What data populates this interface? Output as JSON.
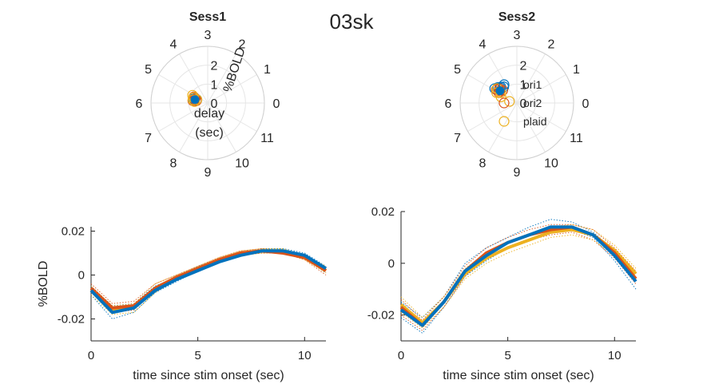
{
  "figure_title": "03sk",
  "colors": {
    "ori1": "#0072BD",
    "ori2": "#D95319",
    "plaid": "#EDB120",
    "mean_marker": "#0072BD",
    "axis": "#262626",
    "polar_grid": "#E6E6E6"
  },
  "chart_data": [
    {
      "type": "polar-scatter",
      "title": "Sess1",
      "theta_labels": [
        "0",
        "1",
        "2",
        "3",
        "4",
        "5",
        "6",
        "7",
        "8",
        "9",
        "10",
        "11"
      ],
      "r_ticks": [
        "0",
        "1",
        "2"
      ],
      "r_label": "%BOLD",
      "theta_label": "delay (sec)",
      "theta_label_lines": [
        "delay",
        "(sec)"
      ],
      "r_max": 3,
      "points": [
        {
          "series": "ori1",
          "delay": 5.5,
          "r": 0.6
        },
        {
          "series": "ori1",
          "delay": 5.6,
          "r": 0.7
        },
        {
          "series": "ori1",
          "delay": 5.5,
          "r": 0.8
        },
        {
          "series": "ori1",
          "delay": 5.3,
          "r": 0.7
        },
        {
          "series": "ori1",
          "delay": 5.4,
          "r": 0.6
        },
        {
          "series": "ori2",
          "delay": 5.4,
          "r": 0.7
        },
        {
          "series": "ori2",
          "delay": 5.6,
          "r": 0.6
        },
        {
          "series": "ori2",
          "delay": 5.2,
          "r": 0.8
        },
        {
          "series": "ori2",
          "delay": 5.7,
          "r": 0.8
        },
        {
          "series": "ori2",
          "delay": 5.5,
          "r": 0.7
        },
        {
          "series": "plaid",
          "delay": 5.3,
          "r": 0.8
        },
        {
          "series": "plaid",
          "delay": 5.6,
          "r": 0.8
        },
        {
          "series": "plaid",
          "delay": 5.1,
          "r": 0.9
        },
        {
          "series": "plaid",
          "delay": 5.8,
          "r": 0.7
        },
        {
          "series": "plaid",
          "delay": 5.4,
          "r": 0.6
        }
      ],
      "mean": {
        "delay": 5.5,
        "r": 0.7
      }
    },
    {
      "type": "polar-scatter",
      "title": "Sess2",
      "theta_labels": [
        "0",
        "1",
        "2",
        "3",
        "4",
        "5",
        "6",
        "7",
        "8",
        "9",
        "10",
        "11"
      ],
      "r_ticks": [
        "0",
        "1",
        "2"
      ],
      "r_max": 3,
      "legend": {
        "entries": [
          "ori1",
          "ori2",
          "plaid"
        ],
        "placement": "inside"
      },
      "points": [
        {
          "series": "ori1",
          "delay": 4.5,
          "r": 1.2
        },
        {
          "series": "ori1",
          "delay": 4.7,
          "r": 1.3
        },
        {
          "series": "ori1",
          "delay": 4.3,
          "r": 1.1
        },
        {
          "series": "ori1",
          "delay": 4.9,
          "r": 1.4
        },
        {
          "series": "ori1",
          "delay": 4.6,
          "r": 1.2
        },
        {
          "series": "ori2",
          "delay": 4.8,
          "r": 1.1
        },
        {
          "series": "ori2",
          "delay": 4.9,
          "r": 1.3
        },
        {
          "series": "ori2",
          "delay": 4.6,
          "r": 1.0
        },
        {
          "series": "ori2",
          "delay": 4.7,
          "r": 1.2
        },
        {
          "series": "ori2",
          "delay": 5.0,
          "r": 1.1
        },
        {
          "series": "plaid",
          "delay": 4.9,
          "r": 1.0
        },
        {
          "series": "plaid",
          "delay": 5.1,
          "r": 1.2
        },
        {
          "series": "plaid",
          "delay": 5.3,
          "r": 0.9
        },
        {
          "series": "plaid",
          "delay": 5.6,
          "r": 0.4
        },
        {
          "series": "plaid",
          "delay": 4.8,
          "r": 1.3
        }
      ],
      "mean": {
        "delay": 4.8,
        "r": 1.1
      }
    },
    {
      "type": "line",
      "title": "",
      "xlabel": "time since stim onset (sec)",
      "ylabel": "%BOLD",
      "xlim": [
        0,
        11
      ],
      "ylim": [
        -0.03,
        0.022
      ],
      "xticks": [
        0,
        5,
        10
      ],
      "yticks": [
        -0.02,
        0,
        0.02
      ],
      "ytick_labels": [
        "-0.02",
        "0",
        "0.02"
      ],
      "x": [
        0,
        1,
        2,
        3,
        4,
        5,
        6,
        7,
        8,
        9,
        10,
        11
      ],
      "series": [
        {
          "color_key": "plaid",
          "values": [
            -0.007,
            -0.016,
            -0.015,
            -0.006,
            -0.001,
            0.003,
            0.007,
            0.01,
            0.011,
            0.011,
            0.008,
            0.002
          ]
        },
        {
          "color_key": "ori2",
          "values": [
            -0.006,
            -0.015,
            -0.014,
            -0.006,
            -0.001,
            0.003,
            0.007,
            0.01,
            0.011,
            0.01,
            0.008,
            0.002
          ]
        },
        {
          "color_key": "ori1",
          "values": [
            -0.007,
            -0.017,
            -0.015,
            -0.007,
            -0.002,
            0.002,
            0.006,
            0.009,
            0.011,
            0.011,
            0.009,
            0.003
          ]
        }
      ],
      "run_traces": [
        {
          "color_key": "ori1",
          "values": [
            -0.009,
            -0.02,
            -0.017,
            -0.008,
            -0.003,
            0.002,
            0.006,
            0.009,
            0.011,
            0.01,
            0.008,
            0.001
          ]
        },
        {
          "color_key": "ori1",
          "values": [
            -0.005,
            -0.014,
            -0.013,
            -0.005,
            -0.001,
            0.004,
            0.007,
            0.01,
            0.012,
            0.012,
            0.01,
            0.004
          ]
        },
        {
          "color_key": "ori2",
          "values": [
            -0.008,
            -0.017,
            -0.016,
            -0.007,
            -0.002,
            0.002,
            0.006,
            0.009,
            0.01,
            0.01,
            0.007,
            0.0
          ]
        },
        {
          "color_key": "ori2",
          "values": [
            -0.004,
            -0.013,
            -0.012,
            -0.004,
            0.0,
            0.004,
            0.008,
            0.011,
            0.012,
            0.011,
            0.009,
            0.003
          ]
        },
        {
          "color_key": "plaid",
          "values": [
            -0.009,
            -0.018,
            -0.017,
            -0.008,
            -0.002,
            0.002,
            0.006,
            0.009,
            0.01,
            0.01,
            0.007,
            0.001
          ]
        },
        {
          "color_key": "plaid",
          "values": [
            -0.005,
            -0.014,
            -0.013,
            -0.004,
            0.0,
            0.004,
            0.008,
            0.011,
            0.012,
            0.012,
            0.009,
            0.004
          ]
        }
      ]
    },
    {
      "type": "line",
      "title": "",
      "xlabel": "time since stim onset (sec)",
      "ylabel": "",
      "xlim": [
        0,
        11
      ],
      "ylim": [
        -0.03,
        0.02
      ],
      "xticks": [
        0,
        5,
        10
      ],
      "yticks": [
        -0.02,
        0,
        0.02
      ],
      "ytick_labels": [
        "-0.02",
        "0",
        "0.02"
      ],
      "x": [
        0,
        1,
        2,
        3,
        4,
        5,
        6,
        7,
        8,
        9,
        10,
        11
      ],
      "series": [
        {
          "color_key": "plaid",
          "values": [
            -0.016,
            -0.023,
            -0.015,
            -0.004,
            0.002,
            0.006,
            0.009,
            0.012,
            0.013,
            0.011,
            0.005,
            -0.004
          ]
        },
        {
          "color_key": "ori2",
          "values": [
            -0.017,
            -0.024,
            -0.015,
            -0.003,
            0.004,
            0.008,
            0.011,
            0.013,
            0.014,
            0.011,
            0.004,
            -0.006
          ]
        },
        {
          "color_key": "ori1",
          "values": [
            -0.018,
            -0.024,
            -0.015,
            -0.003,
            0.003,
            0.008,
            0.011,
            0.014,
            0.014,
            0.011,
            0.003,
            -0.007
          ]
        }
      ],
      "run_traces": [
        {
          "color_key": "ori1",
          "values": [
            -0.021,
            -0.027,
            -0.017,
            -0.005,
            0.001,
            0.006,
            0.009,
            0.012,
            0.013,
            0.01,
            0.001,
            -0.01
          ]
        },
        {
          "color_key": "ori1",
          "values": [
            -0.015,
            -0.021,
            -0.013,
            0.0,
            0.006,
            0.01,
            0.014,
            0.017,
            0.016,
            0.012,
            0.005,
            -0.004
          ]
        },
        {
          "color_key": "ori2",
          "values": [
            -0.02,
            -0.026,
            -0.017,
            -0.005,
            0.002,
            0.006,
            0.009,
            0.011,
            0.012,
            0.009,
            0.002,
            -0.008
          ]
        },
        {
          "color_key": "ori2",
          "values": [
            -0.014,
            -0.022,
            -0.013,
            -0.001,
            0.006,
            0.01,
            0.013,
            0.015,
            0.015,
            0.013,
            0.006,
            -0.003
          ]
        },
        {
          "color_key": "plaid",
          "values": [
            -0.019,
            -0.025,
            -0.017,
            -0.006,
            0.0,
            0.004,
            0.007,
            0.01,
            0.011,
            0.009,
            0.003,
            -0.006
          ]
        },
        {
          "color_key": "plaid",
          "values": [
            -0.013,
            -0.021,
            -0.013,
            -0.002,
            0.004,
            0.008,
            0.011,
            0.014,
            0.015,
            0.013,
            0.007,
            -0.002
          ]
        }
      ]
    }
  ]
}
